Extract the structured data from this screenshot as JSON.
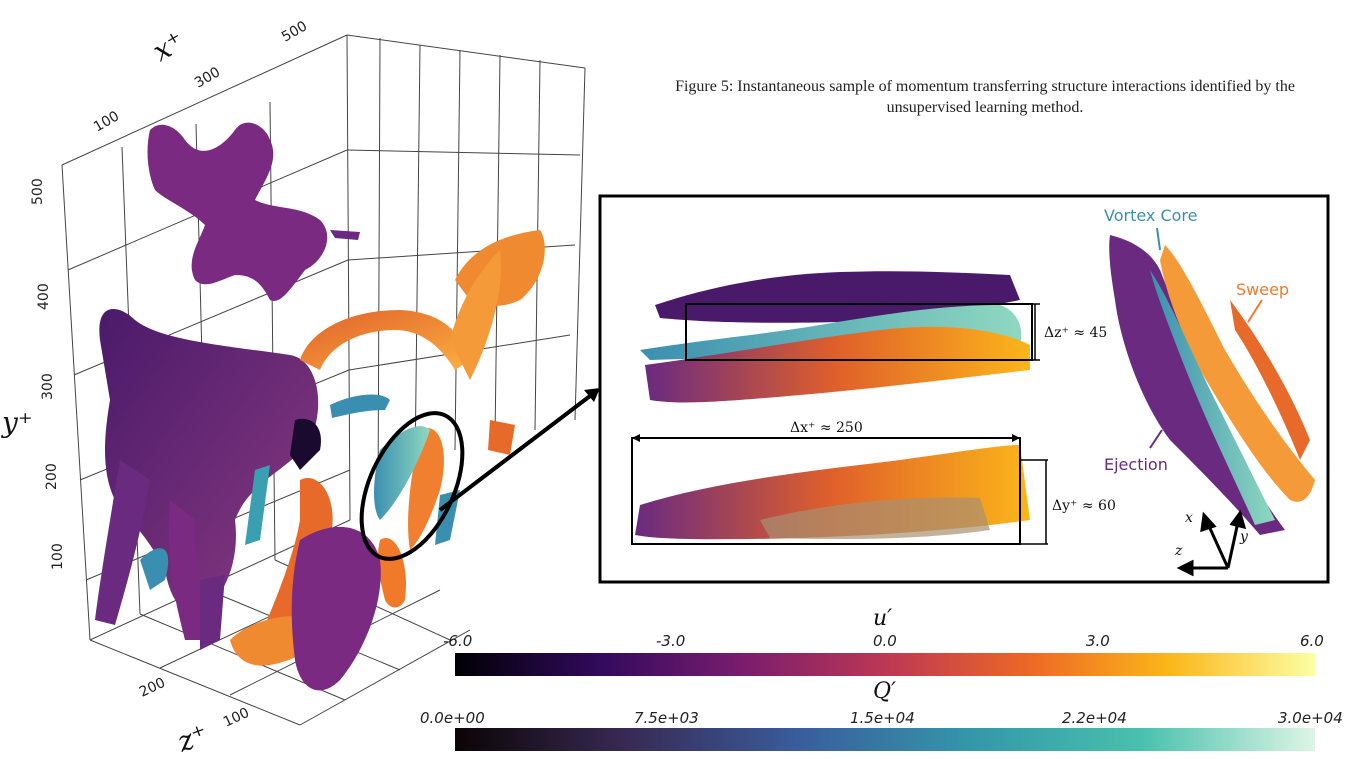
{
  "caption": "Figure 5: Instantaneous sample of momentum transferring structure interactions identified by the unsupervised learning method.",
  "axes3d": {
    "x_label": "x⁺",
    "y_label": "y⁺",
    "z_label": "z⁺",
    "x_ticks": [
      "100",
      "300",
      "500"
    ],
    "y_ticks": [
      "500",
      "400",
      "300",
      "200",
      "100"
    ],
    "z_ticks": [
      "200",
      "100"
    ]
  },
  "inset": {
    "vortex_label": "Vortex Core",
    "sweep_label": "Sweep",
    "ejection_label": "Ejection",
    "dz": "Δz⁺ ≈ 45",
    "dx": "Δx⁺ ≈ 250",
    "dy": "Δy⁺ ≈ 60",
    "axis_x": "x",
    "axis_y": "y",
    "axis_z": "z",
    "colors": {
      "vortex": "#3a8fb0",
      "sweep": "#f07a2a",
      "ejection": "#6a2a80"
    }
  },
  "colorbars": [
    {
      "title": "u′",
      "ticks": [
        "-6.0",
        "-3.0",
        "0.0",
        "3.0",
        "6.0"
      ],
      "colormap": "inferno",
      "stops": [
        "#000004",
        "#320a5e",
        "#781c6d",
        "#bc3754",
        "#ed6925",
        "#fbb61a",
        "#fcffa4"
      ]
    },
    {
      "title": "Q′",
      "ticks": [
        "0.0e+00",
        "7.5e+03",
        "1.5e+04",
        "2.2e+04",
        "3.0e+04"
      ],
      "colormap": "mako",
      "stops": [
        "#0b0405",
        "#382a54",
        "#395d9c",
        "#3497a9",
        "#49c1ad",
        "#def5e5"
      ]
    }
  ]
}
